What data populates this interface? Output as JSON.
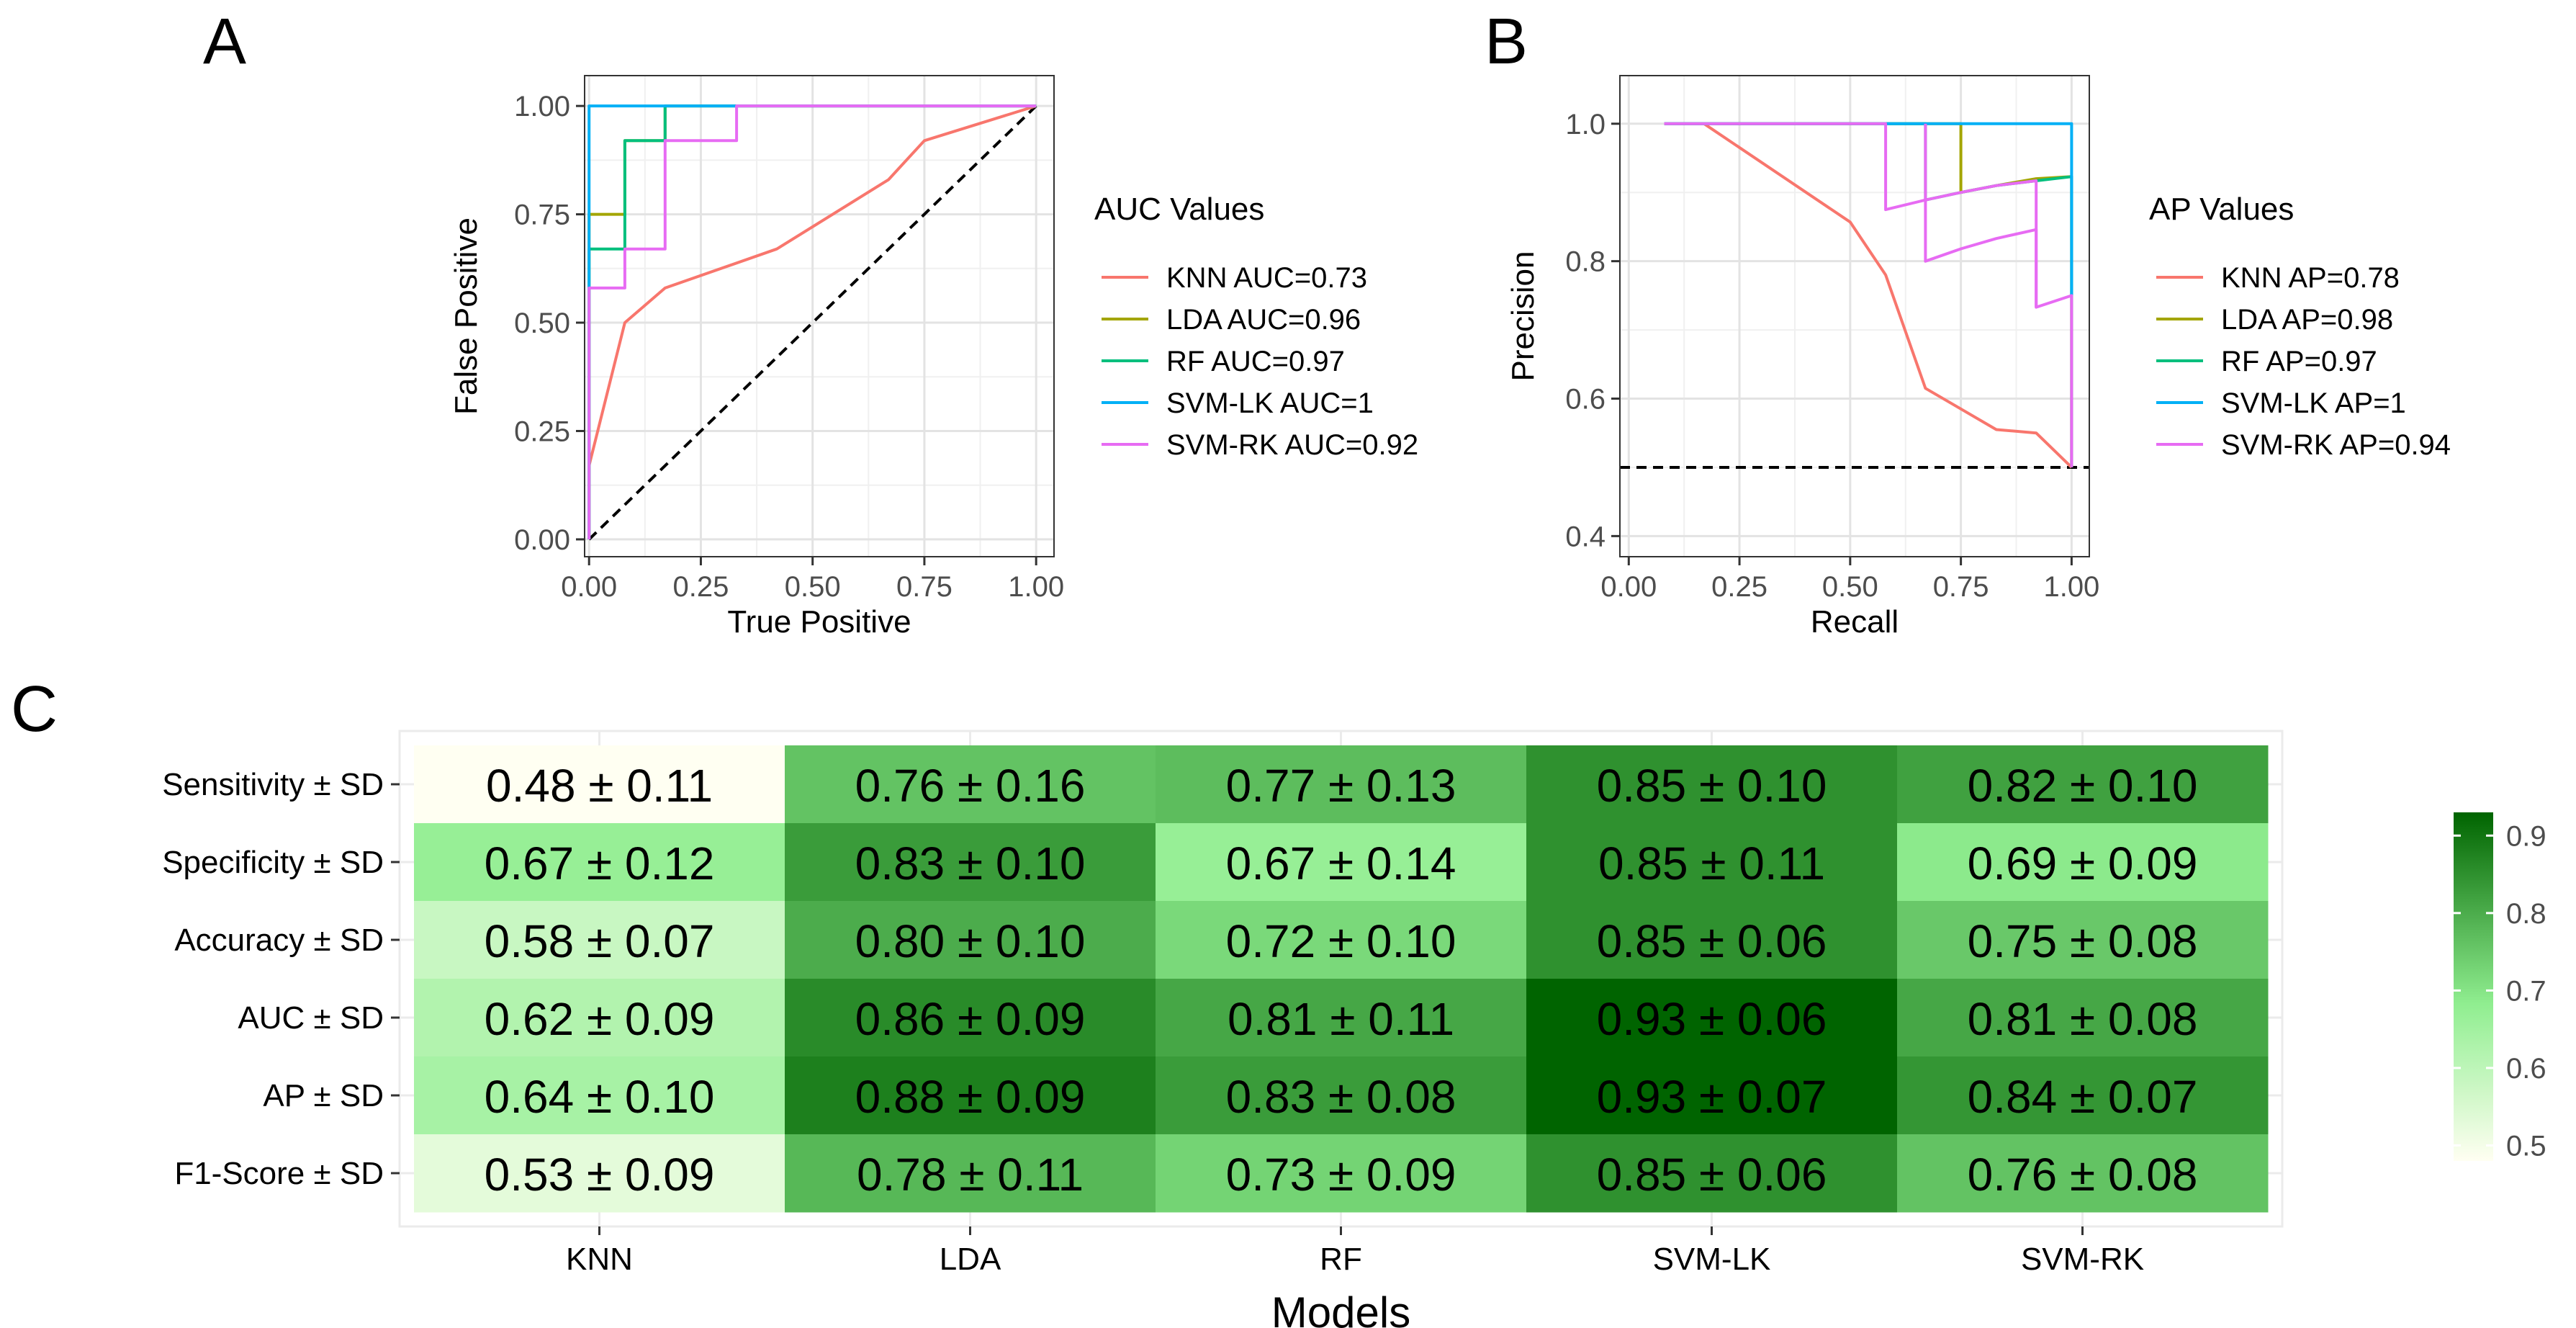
{
  "panels": {
    "a": {
      "letter": "A"
    },
    "b": {
      "letter": "B"
    },
    "c": {
      "letter": "C"
    }
  },
  "chart_data": [
    {
      "id": "roc",
      "type": "line",
      "xlabel": "True Positive",
      "ylabel": "False Positive",
      "xlim": [
        -0.01,
        1.04
      ],
      "ylim": [
        -0.04,
        1.07
      ],
      "x_ticks": [
        0,
        0.25,
        0.5,
        0.75,
        1.0
      ],
      "x_tick_labels": [
        "0.00",
        "0.25",
        "0.50",
        "0.75",
        "1.00"
      ],
      "y_ticks": [
        0,
        0.25,
        0.5,
        0.75,
        1.0
      ],
      "y_tick_labels": [
        "0.00",
        "0.25",
        "0.50",
        "0.75",
        "1.00"
      ],
      "grid": true,
      "reference_line": {
        "style": "dashed",
        "from": [
          0,
          0
        ],
        "to": [
          1,
          1
        ]
      },
      "legend": {
        "title": "AUC Values",
        "position": "right",
        "entries": [
          "KNN AUC=0.73",
          "LDA AUC=0.96",
          "RF AUC=0.97",
          "SVM-LK AUC=1",
          "SVM-RK AUC=0.92"
        ]
      },
      "series": [
        {
          "color": "#F8766D",
          "points": [
            [
              0,
              0
            ],
            [
              0,
              0.17
            ],
            [
              0.08,
              0.5
            ],
            [
              0.17,
              0.58
            ],
            [
              0.42,
              0.67
            ],
            [
              0.67,
              0.83
            ],
            [
              0.75,
              0.92
            ],
            [
              1,
              1
            ]
          ]
        },
        {
          "color": "#A3A500",
          "points": [
            [
              0,
              0
            ],
            [
              0,
              0.75
            ],
            [
              0.08,
              0.75
            ],
            [
              0.08,
              0.92
            ],
            [
              0.17,
              0.92
            ],
            [
              0.17,
              1
            ],
            [
              1,
              1
            ]
          ]
        },
        {
          "color": "#00BF7D",
          "points": [
            [
              0,
              0
            ],
            [
              0,
              0.67
            ],
            [
              0.08,
              0.67
            ],
            [
              0.08,
              0.92
            ],
            [
              0.17,
              0.92
            ],
            [
              0.17,
              1
            ],
            [
              1,
              1
            ]
          ]
        },
        {
          "color": "#00B0F6",
          "points": [
            [
              0,
              0
            ],
            [
              0,
              0.58
            ],
            [
              0,
              1
            ],
            [
              1,
              1
            ]
          ]
        },
        {
          "color": "#E76BF3",
          "points": [
            [
              0,
              0
            ],
            [
              0,
              0.58
            ],
            [
              0.08,
              0.58
            ],
            [
              0.08,
              0.67
            ],
            [
              0.17,
              0.67
            ],
            [
              0.17,
              0.92
            ],
            [
              0.33,
              0.92
            ],
            [
              0.33,
              1
            ],
            [
              1,
              1
            ]
          ]
        }
      ]
    },
    {
      "id": "pr",
      "type": "line",
      "xlabel": "Recall",
      "ylabel": "Precision",
      "xlim": [
        -0.02,
        1.04
      ],
      "ylim": [
        0.37,
        1.07
      ],
      "x_ticks": [
        0,
        0.25,
        0.5,
        0.75,
        1.0
      ],
      "x_tick_labels": [
        "0.00",
        "0.25",
        "0.50",
        "0.75",
        "1.00"
      ],
      "y_ticks": [
        0.4,
        0.6,
        0.8,
        1.0
      ],
      "y_tick_labels": [
        "0.4",
        "0.6",
        "0.8",
        "1.0"
      ],
      "grid": true,
      "reference_line": {
        "style": "dashed",
        "from": [
          -0.02,
          0.5
        ],
        "to": [
          1.04,
          0.5
        ]
      },
      "legend": {
        "title": "AP Values",
        "position": "right",
        "entries": [
          "KNN AP=0.78",
          "LDA AP=0.98",
          "RF AP=0.97",
          "SVM-LK AP=1",
          "SVM-RK AP=0.94"
        ]
      },
      "series": [
        {
          "color": "#F8766D",
          "points": [
            [
              0.17,
              1
            ],
            [
              0.5,
              0.857
            ],
            [
              0.58,
              0.78
            ],
            [
              0.67,
              0.615
            ],
            [
              0.75,
              0.585
            ],
            [
              0.83,
              0.555
            ],
            [
              0.92,
              0.55
            ],
            [
              1,
              0.5
            ]
          ]
        },
        {
          "color": "#A3A500",
          "points": [
            [
              0.08,
              1
            ],
            [
              0.75,
              1
            ],
            [
              0.75,
              0.9
            ],
            [
              0.83,
              0.91
            ],
            [
              0.92,
              0.92
            ],
            [
              0.92,
              0.92
            ],
            [
              1,
              0.923
            ],
            [
              1,
              0.5
            ]
          ]
        },
        {
          "color": "#00BF7D",
          "points": [
            [
              0.08,
              1
            ],
            [
              0.67,
              1
            ],
            [
              0.67,
              0.889
            ],
            [
              0.75,
              0.9
            ],
            [
              0.83,
              0.91
            ],
            [
              0.92,
              0.917
            ],
            [
              1,
              0.923
            ],
            [
              1,
              0.5
            ]
          ]
        },
        {
          "color": "#00B0F6",
          "points": [
            [
              0.08,
              1
            ],
            [
              1,
              1
            ],
            [
              1,
              0.75
            ]
          ]
        },
        {
          "color": "#E76BF3",
          "points": [
            [
              0.08,
              1
            ],
            [
              0.58,
              1
            ],
            [
              0.58,
              0.875
            ],
            [
              0.67,
              0.889
            ],
            [
              0.75,
              0.9
            ],
            [
              0.83,
              0.91
            ],
            [
              0.92,
              0.917
            ],
            [
              0.92,
              0.917
            ],
            [
              0.92,
              0.733
            ],
            [
              1,
              0.75
            ],
            [
              1,
              0.5
            ]
          ]
        },
        {
          "color": "#E76BF3",
          "points": [
            [
              0.67,
              1
            ],
            [
              0.67,
              0.8
            ],
            [
              0.75,
              0.818
            ],
            [
              0.83,
              0.833
            ],
            [
              0.92,
              0.846
            ],
            [
              0.92,
              0.733
            ]
          ]
        }
      ]
    },
    {
      "id": "heatmap",
      "type": "heatmap",
      "xlabel": "Models",
      "ylabel": "",
      "columns": [
        "KNN",
        "LDA",
        "RF",
        "SVM-LK",
        "SVM-RK"
      ],
      "rows": [
        "Sensitivity ± SD",
        "Specificity ± SD",
        "Accuracy ± SD",
        "AUC ± SD",
        "AP ± SD",
        "F1-Score ± SD"
      ],
      "values": [
        [
          0.48,
          0.76,
          0.77,
          0.85,
          0.82
        ],
        [
          0.67,
          0.83,
          0.67,
          0.85,
          0.69
        ],
        [
          0.58,
          0.8,
          0.72,
          0.85,
          0.75
        ],
        [
          0.62,
          0.86,
          0.81,
          0.93,
          0.81
        ],
        [
          0.64,
          0.88,
          0.83,
          0.93,
          0.84
        ],
        [
          0.53,
          0.78,
          0.73,
          0.85,
          0.76
        ]
      ],
      "cell_labels": [
        [
          "0.48 ± 0.11",
          "0.76 ± 0.16",
          "0.77 ± 0.13",
          "0.85 ± 0.10",
          "0.82 ± 0.10"
        ],
        [
          "0.67 ± 0.12",
          "0.83 ± 0.10",
          "0.67 ± 0.14",
          "0.85 ± 0.11",
          "0.69 ± 0.09"
        ],
        [
          "0.58 ± 0.07",
          "0.80 ± 0.10",
          "0.72 ± 0.10",
          "0.85 ± 0.06",
          "0.75 ± 0.08"
        ],
        [
          "0.62 ± 0.09",
          "0.86 ± 0.09",
          "0.81 ± 0.11",
          "0.93 ± 0.06",
          "0.81 ± 0.08"
        ],
        [
          "0.64 ± 0.10",
          "0.88 ± 0.09",
          "0.83 ± 0.08",
          "0.93 ± 0.07",
          "0.84 ± 0.07"
        ],
        [
          "0.53 ± 0.09",
          "0.78 ± 0.11",
          "0.73 ± 0.09",
          "0.85 ± 0.06",
          "0.76 ± 0.08"
        ]
      ],
      "color_scale": {
        "low": "#FFFFF2",
        "mid": "#90EE90",
        "high": "#006400",
        "range": [
          0.48,
          0.93
        ],
        "ticks": [
          0.5,
          0.6,
          0.7,
          0.8,
          0.9
        ],
        "tick_labels": [
          "0.5",
          "0.6",
          "0.7",
          "0.8",
          "0.9"
        ],
        "position": "right"
      }
    }
  ]
}
